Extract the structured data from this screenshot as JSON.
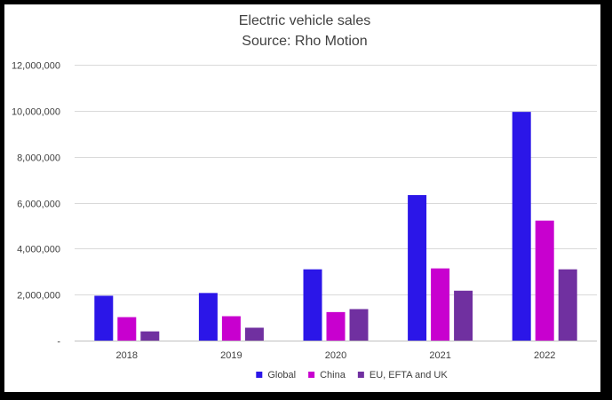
{
  "chart_data": {
    "type": "bar",
    "title": "Electric vehicle sales",
    "subtitle": "Source: Rho Motion",
    "xlabel": "",
    "ylabel": "",
    "categories": [
      "2018",
      "2019",
      "2020",
      "2021",
      "2022"
    ],
    "series": [
      {
        "name": "Global",
        "color": "#2b16e8",
        "values": [
          1950000,
          2070000,
          3100000,
          6330000,
          9950000
        ]
      },
      {
        "name": "China",
        "color": "#c800cf",
        "values": [
          1020000,
          1060000,
          1240000,
          3140000,
          5220000
        ]
      },
      {
        "name": "EU, EFTA and UK",
        "color": "#7030a0",
        "values": [
          400000,
          560000,
          1370000,
          2170000,
          3100000
        ]
      }
    ],
    "ylim": [
      0,
      12000000
    ],
    "yticks": [
      0,
      2000000,
      4000000,
      6000000,
      8000000,
      10000000,
      12000000
    ],
    "ytick_labels": [
      "-",
      "2,000,000",
      "4,000,000",
      "6,000,000",
      "8,000,000",
      "10,000,000",
      "12,000,000"
    ],
    "grid": true,
    "legend_position": "bottom"
  }
}
